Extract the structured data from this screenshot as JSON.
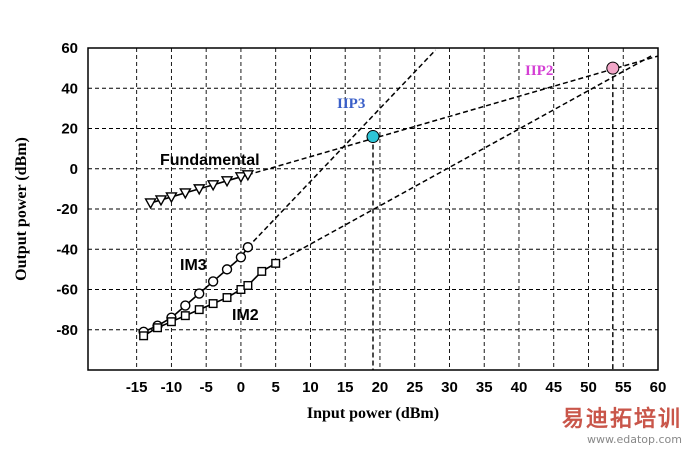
{
  "chart_data": {
    "type": "line",
    "title": "",
    "xlabel": "Input power (dBm)",
    "ylabel": "Output power (dBm)",
    "xlim": [
      -22,
      60
    ],
    "ylim": [
      -100,
      60
    ],
    "x_ticks": [
      -15,
      -10,
      -5,
      0,
      5,
      10,
      15,
      20,
      25,
      30,
      35,
      40,
      45,
      50,
      55,
      60
    ],
    "y_ticks": [
      -80,
      -60,
      -40,
      -20,
      0,
      20,
      40,
      60
    ],
    "grid": true,
    "series": [
      {
        "name": "Fundamental",
        "marker": "triangle-down",
        "measured": {
          "x": [
            -13,
            -11.5,
            -10,
            -8,
            -6,
            -4,
            -2,
            0,
            1
          ],
          "y": [
            -17,
            -15.5,
            -14,
            -12,
            -10,
            -8,
            -6,
            -4,
            -3
          ]
        },
        "extrapolation": {
          "x": [
            1,
            60
          ],
          "y": [
            -3,
            56
          ]
        }
      },
      {
        "name": "IM3",
        "marker": "circle",
        "measured": {
          "x": [
            -14,
            -12,
            -10,
            -8,
            -6,
            -4,
            -2,
            0,
            1
          ],
          "y": [
            -81,
            -78,
            -74,
            -68,
            -62,
            -56,
            -50,
            -44,
            -39
          ]
        },
        "extrapolation": {
          "x": [
            1,
            28
          ],
          "y": [
            -39,
            59
          ]
        }
      },
      {
        "name": "IM2",
        "marker": "square",
        "measured": {
          "x": [
            -14,
            -12,
            -10,
            -8,
            -6,
            -4,
            -2,
            0,
            1,
            3,
            5
          ],
          "y": [
            -83,
            -79,
            -76,
            -73,
            -70,
            -67,
            -64,
            -60,
            -58,
            -51,
            -47
          ]
        },
        "extrapolation": {
          "x": [
            5,
            59
          ],
          "y": [
            -47,
            56
          ]
        }
      }
    ],
    "intercepts": [
      {
        "name": "IIP3",
        "x": 19,
        "y": 16,
        "color": "#2ec4d6",
        "label_color": "#3a5fc8"
      },
      {
        "name": "IIP2",
        "x": 53.5,
        "y": 50,
        "color": "#f2a6c8",
        "label_color": "#d43fd4"
      }
    ]
  },
  "watermark": {
    "text": "易迪拓培训",
    "url": "www.edatop.com"
  }
}
